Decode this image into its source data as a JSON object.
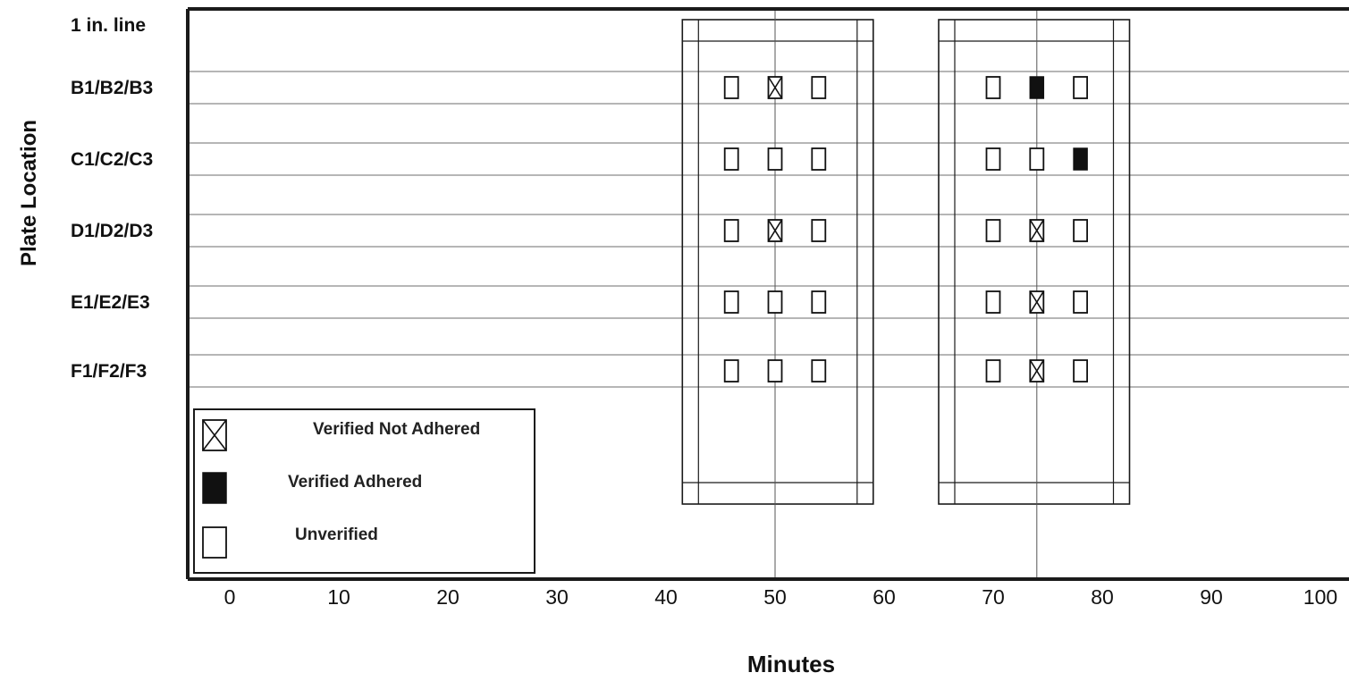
{
  "chart_data": {
    "type": "scatter",
    "xlabel": "Minutes",
    "ylabel": "Plate Location",
    "xlim": [
      -5,
      102
    ],
    "x_ticks": [
      0,
      10,
      20,
      30,
      40,
      50,
      60,
      70,
      80,
      90,
      100
    ],
    "y_rows": [
      "1 in. line",
      "B1/B2/B3",
      "C1/C2/C3",
      "D1/D2/D3",
      "E1/E2/E3",
      "F1/F2/F3"
    ],
    "reference_lines_x": [
      50,
      74
    ],
    "windows": [
      {
        "x_start": 41.5,
        "x_end": 59.0
      },
      {
        "x_start": 65.0,
        "x_end": 82.5
      }
    ],
    "points": [
      {
        "row": "B1/B2/B3",
        "x": 46,
        "status": "Unverified"
      },
      {
        "row": "B1/B2/B3",
        "x": 50,
        "status": "Verified Not Adhered"
      },
      {
        "row": "B1/B2/B3",
        "x": 54,
        "status": "Unverified"
      },
      {
        "row": "C1/C2/C3",
        "x": 46,
        "status": "Unverified"
      },
      {
        "row": "C1/C2/C3",
        "x": 50,
        "status": "Unverified"
      },
      {
        "row": "C1/C2/C3",
        "x": 54,
        "status": "Unverified"
      },
      {
        "row": "D1/D2/D3",
        "x": 46,
        "status": "Unverified"
      },
      {
        "row": "D1/D2/D3",
        "x": 50,
        "status": "Verified Not Adhered"
      },
      {
        "row": "D1/D2/D3",
        "x": 54,
        "status": "Unverified"
      },
      {
        "row": "E1/E2/E3",
        "x": 46,
        "status": "Unverified"
      },
      {
        "row": "E1/E2/E3",
        "x": 50,
        "status": "Unverified"
      },
      {
        "row": "E1/E2/E3",
        "x": 54,
        "status": "Unverified"
      },
      {
        "row": "F1/F2/F3",
        "x": 46,
        "status": "Unverified"
      },
      {
        "row": "F1/F2/F3",
        "x": 50,
        "status": "Unverified"
      },
      {
        "row": "F1/F2/F3",
        "x": 54,
        "status": "Unverified"
      },
      {
        "row": "B1/B2/B3",
        "x": 70,
        "status": "Unverified"
      },
      {
        "row": "B1/B2/B3",
        "x": 74,
        "status": "Verified Adhered"
      },
      {
        "row": "B1/B2/B3",
        "x": 78,
        "status": "Unverified"
      },
      {
        "row": "C1/C2/C3",
        "x": 70,
        "status": "Unverified"
      },
      {
        "row": "C1/C2/C3",
        "x": 74,
        "status": "Unverified"
      },
      {
        "row": "C1/C2/C3",
        "x": 78,
        "status": "Verified Adhered"
      },
      {
        "row": "D1/D2/D3",
        "x": 70,
        "status": "Unverified"
      },
      {
        "row": "D1/D2/D3",
        "x": 74,
        "status": "Verified Not Adhered"
      },
      {
        "row": "D1/D2/D3",
        "x": 78,
        "status": "Unverified"
      },
      {
        "row": "E1/E2/E3",
        "x": 70,
        "status": "Unverified"
      },
      {
        "row": "E1/E2/E3",
        "x": 74,
        "status": "Verified Not Adhered"
      },
      {
        "row": "E1/E2/E3",
        "x": 78,
        "status": "Unverified"
      },
      {
        "row": "F1/F2/F3",
        "x": 70,
        "status": "Unverified"
      },
      {
        "row": "F1/F2/F3",
        "x": 74,
        "status": "Verified Not Adhered"
      },
      {
        "row": "F1/F2/F3",
        "x": 78,
        "status": "Unverified"
      }
    ],
    "legend": {
      "placement": "bottom-left",
      "entries": [
        {
          "status": "Verified Not Adhered",
          "label": "Verified Not Adhered"
        },
        {
          "status": "Verified Adhered",
          "label": "Verified Adhered"
        },
        {
          "status": "Unverified",
          "label": "Unverified"
        }
      ]
    },
    "colors": {
      "ink": "#111111",
      "lane": "#8a8a8a",
      "frame": "#1a1a1a",
      "background": "#ffffff"
    }
  }
}
